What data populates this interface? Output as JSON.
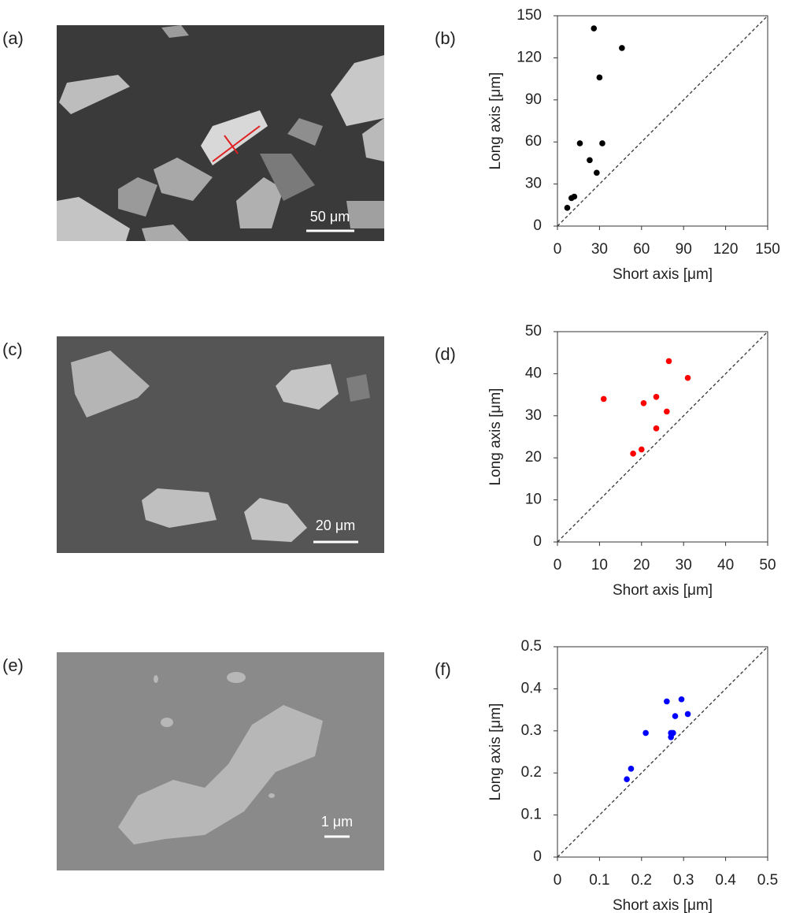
{
  "images": [
    {
      "label": "(a)",
      "scale_bar": "50 μm"
    },
    {
      "label": "(c)",
      "scale_bar": "20 μm"
    },
    {
      "label": "(e)",
      "scale_bar": "1 μm"
    }
  ],
  "chart_data": [
    {
      "type": "scatter",
      "panel_label": "(b)",
      "x_label": "Short axis [μm]",
      "y_label": "Long axis [μm]",
      "x": [
        7,
        10,
        12,
        16,
        23,
        26,
        28,
        30,
        32,
        46
      ],
      "values": [
        13,
        20,
        21,
        59,
        47,
        141,
        38,
        106,
        59,
        127
      ],
      "color": "#000000",
      "xlim": [
        0,
        150
      ],
      "ylim": [
        0,
        150
      ],
      "xticks": [
        0,
        30,
        60,
        90,
        120,
        150
      ],
      "yticks": [
        0,
        30,
        60,
        90,
        120,
        150
      ]
    },
    {
      "type": "scatter",
      "panel_label": "(d)",
      "x_label": "Short axis [μm]",
      "y_label": "Long axis [μm]",
      "x": [
        11,
        18,
        20,
        20.5,
        23.5,
        23.5,
        26,
        26.5,
        31
      ],
      "values": [
        34,
        21,
        22,
        33,
        27,
        34.5,
        31,
        43,
        39
      ],
      "color": "#ff0000",
      "xlim": [
        0,
        50
      ],
      "ylim": [
        0,
        50
      ],
      "xticks": [
        0,
        10,
        20,
        30,
        40,
        50
      ],
      "yticks": [
        0,
        10,
        20,
        30,
        40,
        50
      ]
    },
    {
      "type": "scatter",
      "panel_label": "(f)",
      "x_label": "Short axis [μm]",
      "y_label": "Long axis [μm]",
      "x": [
        0.165,
        0.175,
        0.21,
        0.26,
        0.27,
        0.27,
        0.275,
        0.28,
        0.295,
        0.31
      ],
      "values": [
        0.185,
        0.21,
        0.295,
        0.37,
        0.285,
        0.295,
        0.295,
        0.335,
        0.375,
        0.34
      ],
      "color": "#0000ff",
      "xlim": [
        0,
        0.5
      ],
      "ylim": [
        0,
        0.5
      ],
      "xticks": [
        0,
        0.1,
        0.2,
        0.3,
        0.4,
        0.5
      ],
      "yticks": [
        0,
        0.1,
        0.2,
        0.3,
        0.4,
        0.5
      ]
    }
  ]
}
